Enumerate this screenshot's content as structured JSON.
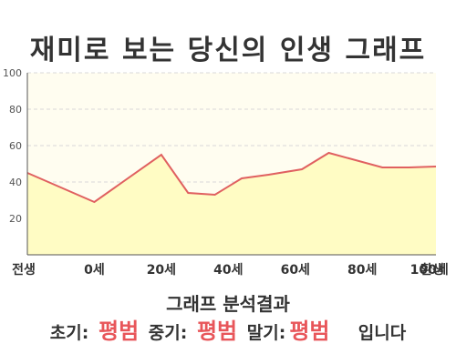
{
  "title": "재미로 보는 당신의 인생 그래프",
  "analysis": {
    "heading": "그래프 분석결과",
    "early_label": "초기:",
    "early_value": "평범",
    "middle_label": "중기:",
    "middle_value": "평범",
    "late_label": "말기:",
    "late_value": "평범",
    "suffix": "입니다"
  },
  "colors": {
    "line": "#e06060",
    "fill": "#fffcc4",
    "plot_bg": "#fffdf0",
    "verdict": "#e8565a"
  },
  "chart_data": {
    "type": "area",
    "title": "재미로 보는 당신의 인생 그래프",
    "xlabel": "",
    "ylabel": "",
    "ylim": [
      0,
      100
    ],
    "yticks": [
      20,
      40,
      60,
      80,
      100
    ],
    "grid": true,
    "x_tick_labels": [
      "전생",
      "0세",
      "20세",
      "40세",
      "60세",
      "80세",
      "100세",
      "환생"
    ],
    "x": [
      -1,
      0,
      1,
      1.4,
      1.8,
      2.2,
      2.6,
      3.1,
      3.5,
      4.3,
      4.7,
      5.1
    ],
    "values": [
      45,
      29,
      55,
      34,
      33,
      42,
      44,
      47,
      56,
      48,
      48,
      48.5
    ]
  }
}
